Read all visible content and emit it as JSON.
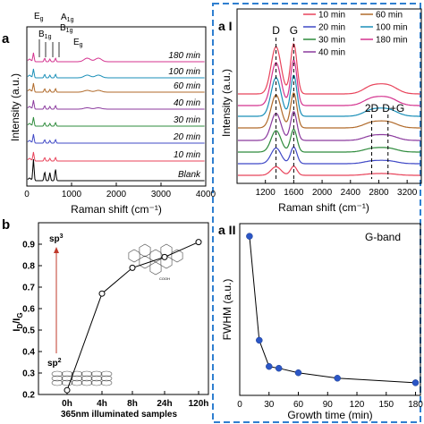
{
  "panel_labels": {
    "a": "a",
    "b": "b",
    "aI": "a I",
    "aII": "a II"
  },
  "chart_data": [
    {
      "id": "panel-a",
      "type": "line",
      "xlabel": "Raman shift (cm⁻¹)",
      "ylabel": "Intensity (a.u.)",
      "xlim": [
        0,
        4000
      ],
      "xticks": [
        0,
        1000,
        2000,
        3000,
        4000
      ],
      "series": [
        {
          "name": "Blank",
          "peaks": [
            [
              148,
              24
            ],
            [
              398,
              10
            ],
            [
              515,
              9
            ],
            [
              640,
              13
            ]
          ]
        },
        {
          "name": "10 min",
          "peaks": [
            [
              148,
              10
            ],
            [
              398,
              4
            ],
            [
              515,
              3
            ],
            [
              640,
              4
            ]
          ]
        },
        {
          "name": "20 min",
          "peaks": [
            [
              148,
              10
            ],
            [
              398,
              4
            ],
            [
              515,
              3
            ],
            [
              640,
              4
            ]
          ]
        },
        {
          "name": "30 min",
          "peaks": [
            [
              148,
              10
            ],
            [
              398,
              4
            ],
            [
              515,
              3
            ],
            [
              640,
              4
            ]
          ]
        },
        {
          "name": "40 min",
          "peaks": [
            [
              148,
              10
            ],
            [
              398,
              4
            ],
            [
              515,
              3
            ],
            [
              640,
              4
            ],
            [
              1350,
              1.5
            ],
            [
              1600,
              1.5
            ]
          ]
        },
        {
          "name": "60 min",
          "peaks": [
            [
              148,
              10
            ],
            [
              398,
              4
            ],
            [
              515,
              3
            ],
            [
              640,
              4
            ],
            [
              1350,
              2
            ],
            [
              1600,
              2
            ]
          ]
        },
        {
          "name": "100 min",
          "peaks": [
            [
              148,
              10
            ],
            [
              398,
              4
            ],
            [
              515,
              3
            ],
            [
              640,
              4
            ],
            [
              1350,
              3
            ],
            [
              1600,
              3
            ]
          ]
        },
        {
          "name": "180 min",
          "peaks": [
            [
              148,
              10
            ],
            [
              398,
              4
            ],
            [
              515,
              3
            ],
            [
              640,
              4
            ],
            [
              1350,
              4
            ],
            [
              1600,
              4
            ]
          ]
        }
      ],
      "annotations": [
        "E",
        "B",
        "A",
        "B",
        "E"
      ],
      "annotation_subs": [
        "g",
        "1g",
        "1g",
        "1g",
        "g"
      ]
    },
    {
      "id": "panel-aI",
      "type": "line",
      "xlabel": "Raman shift (cm⁻¹)",
      "ylabel": "Intensity (a.u.)",
      "xlim": [
        800,
        3400
      ],
      "xticks": [
        1200,
        1600,
        2000,
        2400,
        2800,
        3200
      ],
      "annotations": [
        "D",
        "G",
        "2D",
        "D+G"
      ],
      "annotation_x": [
        1350,
        1600,
        2700,
        2930
      ],
      "series": [
        {
          "name": "10 min",
          "color": "#e8435a"
        },
        {
          "name": "20 min",
          "color": "#3f48c6"
        },
        {
          "name": "30 min",
          "color": "#2e8b3c"
        },
        {
          "name": "40 min",
          "color": "#8b3a9e"
        },
        {
          "name": "60 min",
          "color": "#b06a2a"
        },
        {
          "name": "100 min",
          "color": "#1a8fb8"
        },
        {
          "name": "180 min",
          "color": "#d4338f"
        }
      ]
    },
    {
      "id": "panel-b",
      "type": "line",
      "ylabel_main": "I",
      "ylabel_sub1": "D",
      "ylabel_sep": "/I",
      "ylabel_sub2": "G",
      "xlabel": "365nm illuminated samples",
      "categories": [
        "0h",
        "4h",
        "8h",
        "24h",
        "120h"
      ],
      "values": [
        0.22,
        0.67,
        0.79,
        0.84,
        0.91
      ],
      "ylim": [
        0.2,
        1.0
      ],
      "yticks": [
        0.2,
        0.3,
        0.4,
        0.5,
        0.6,
        0.7,
        0.8,
        0.9
      ],
      "annotations": [
        "sp",
        "sp"
      ],
      "annotation_sups": [
        "3",
        "2"
      ],
      "molecule_label": "COOH"
    },
    {
      "id": "panel-aII",
      "type": "line",
      "title": "G-band",
      "xlabel": "Growth time (min)",
      "ylabel": "FWHM (a.u.)",
      "x": [
        10,
        20,
        30,
        40,
        60,
        100,
        180
      ],
      "y": [
        0.93,
        0.355,
        0.21,
        0.2,
        0.175,
        0.145,
        0.12
      ],
      "xlim": [
        0,
        185
      ],
      "ylim": [
        0.05,
        1.0
      ],
      "xticks": [
        0,
        30,
        60,
        90,
        120,
        150,
        180
      ],
      "color": "#2b56c6"
    }
  ]
}
